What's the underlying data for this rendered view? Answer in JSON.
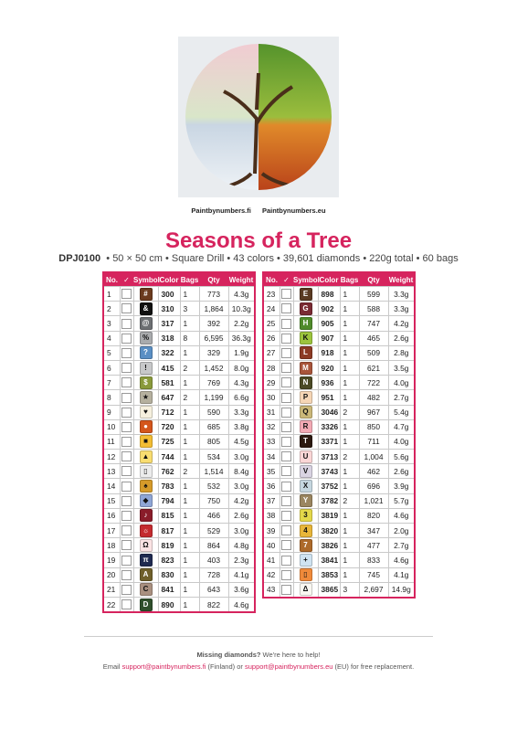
{
  "header": {
    "brands": [
      "Paintbynumbers.fi",
      "Paintbynumbers.eu"
    ],
    "title": "Seasons of a Tree",
    "code": "DPJ0100",
    "specs": "•  50 × 50 cm  •  Square Drill  •  43 colors  •  39,601 diamonds  •  220g total  •  60 bags"
  },
  "columns": [
    "No.",
    "✓",
    "Symbol",
    "Color",
    "Bags",
    "Qty",
    "Weight"
  ],
  "tables": [
    {
      "rows": [
        {
          "no": "1",
          "symbol": "#",
          "color": "300",
          "bags": "1",
          "qty": "773",
          "weight": "4.3g",
          "swatch": "#6b3a1e"
        },
        {
          "no": "2",
          "symbol": "&",
          "color": "310",
          "bags": "3",
          "qty": "1,864",
          "weight": "10.3g",
          "swatch": "#111111"
        },
        {
          "no": "3",
          "symbol": "@",
          "color": "317",
          "bags": "1",
          "qty": "392",
          "weight": "2.2g",
          "swatch": "#6c6f72"
        },
        {
          "no": "4",
          "symbol": "%",
          "color": "318",
          "bags": "8",
          "qty": "6,595",
          "weight": "36.3g",
          "swatch": "#a9abad"
        },
        {
          "no": "5",
          "symbol": "?",
          "color": "322",
          "bags": "1",
          "qty": "329",
          "weight": "1.9g",
          "swatch": "#5a8fc4"
        },
        {
          "no": "6",
          "symbol": "!",
          "color": "415",
          "bags": "2",
          "qty": "1,452",
          "weight": "8.0g",
          "swatch": "#c7c8c9"
        },
        {
          "no": "7",
          "symbol": "$",
          "color": "581",
          "bags": "1",
          "qty": "769",
          "weight": "4.3g",
          "swatch": "#8a9a3b"
        },
        {
          "no": "8",
          "symbol": "★",
          "color": "647",
          "bags": "2",
          "qty": "1,199",
          "weight": "6.6g",
          "swatch": "#b5b09e"
        },
        {
          "no": "9",
          "symbol": "♥",
          "color": "712",
          "bags": "1",
          "qty": "590",
          "weight": "3.3g",
          "swatch": "#f6f0de"
        },
        {
          "no": "10",
          "symbol": "●",
          "color": "720",
          "bags": "1",
          "qty": "685",
          "weight": "3.8g",
          "swatch": "#d4561c"
        },
        {
          "no": "11",
          "symbol": "■",
          "color": "725",
          "bags": "1",
          "qty": "805",
          "weight": "4.5g",
          "swatch": "#f3bd33"
        },
        {
          "no": "12",
          "symbol": "▲",
          "color": "744",
          "bags": "1",
          "qty": "534",
          "weight": "3.0g",
          "swatch": "#f9dd70"
        },
        {
          "no": "13",
          "symbol": "▯",
          "color": "762",
          "bags": "2",
          "qty": "1,514",
          "weight": "8.4g",
          "swatch": "#ececec"
        },
        {
          "no": "14",
          "symbol": "♠",
          "color": "783",
          "bags": "1",
          "qty": "532",
          "weight": "3.0g",
          "swatch": "#d59a2a"
        },
        {
          "no": "15",
          "symbol": "◆",
          "color": "794",
          "bags": "1",
          "qty": "750",
          "weight": "4.2g",
          "swatch": "#8fa6d6"
        },
        {
          "no": "16",
          "symbol": "♪",
          "color": "815",
          "bags": "1",
          "qty": "466",
          "weight": "2.6g",
          "swatch": "#8a1c2a"
        },
        {
          "no": "17",
          "symbol": "☼",
          "color": "817",
          "bags": "1",
          "qty": "529",
          "weight": "3.0g",
          "swatch": "#c42b2f"
        },
        {
          "no": "18",
          "symbol": "Ω",
          "color": "819",
          "bags": "1",
          "qty": "864",
          "weight": "4.8g",
          "swatch": "#fbe3e4"
        },
        {
          "no": "19",
          "symbol": "π",
          "color": "823",
          "bags": "1",
          "qty": "403",
          "weight": "2.3g",
          "swatch": "#1f2a50"
        },
        {
          "no": "20",
          "symbol": "A",
          "color": "830",
          "bags": "1",
          "qty": "728",
          "weight": "4.1g",
          "swatch": "#6f5f2a"
        },
        {
          "no": "21",
          "symbol": "C",
          "color": "841",
          "bags": "1",
          "qty": "643",
          "weight": "3.6g",
          "swatch": "#a99080"
        },
        {
          "no": "22",
          "symbol": "D",
          "color": "890",
          "bags": "1",
          "qty": "822",
          "weight": "4.6g",
          "swatch": "#2f4f2c"
        }
      ]
    },
    {
      "rows": [
        {
          "no": "23",
          "symbol": "E",
          "color": "898",
          "bags": "1",
          "qty": "599",
          "weight": "3.3g",
          "swatch": "#5a3a22"
        },
        {
          "no": "24",
          "symbol": "G",
          "color": "902",
          "bags": "1",
          "qty": "588",
          "weight": "3.3g",
          "swatch": "#7a2a33"
        },
        {
          "no": "25",
          "symbol": "H",
          "color": "905",
          "bags": "1",
          "qty": "747",
          "weight": "4.2g",
          "swatch": "#4f8a2a"
        },
        {
          "no": "26",
          "symbol": "K",
          "color": "907",
          "bags": "1",
          "qty": "465",
          "weight": "2.6g",
          "swatch": "#9cc43d"
        },
        {
          "no": "27",
          "symbol": "L",
          "color": "918",
          "bags": "1",
          "qty": "509",
          "weight": "2.8g",
          "swatch": "#8c3a24"
        },
        {
          "no": "28",
          "symbol": "M",
          "color": "920",
          "bags": "1",
          "qty": "621",
          "weight": "3.5g",
          "swatch": "#a8543a"
        },
        {
          "no": "29",
          "symbol": "N",
          "color": "936",
          "bags": "1",
          "qty": "722",
          "weight": "4.0g",
          "swatch": "#4b4a25"
        },
        {
          "no": "30",
          "symbol": "P",
          "color": "951",
          "bags": "1",
          "qty": "482",
          "weight": "2.7g",
          "swatch": "#f6d6b6"
        },
        {
          "no": "31",
          "symbol": "Q",
          "color": "3046",
          "bags": "2",
          "qty": "967",
          "weight": "5.4g",
          "swatch": "#cbb879"
        },
        {
          "no": "32",
          "symbol": "R",
          "color": "3326",
          "bags": "1",
          "qty": "850",
          "weight": "4.7g",
          "swatch": "#f3aab4"
        },
        {
          "no": "33",
          "symbol": "T",
          "color": "3371",
          "bags": "1",
          "qty": "711",
          "weight": "4.0g",
          "swatch": "#2c1a10"
        },
        {
          "no": "34",
          "symbol": "U",
          "color": "3713",
          "bags": "2",
          "qty": "1,004",
          "weight": "5.6g",
          "swatch": "#fbd6d6"
        },
        {
          "no": "35",
          "symbol": "V",
          "color": "3743",
          "bags": "1",
          "qty": "462",
          "weight": "2.6g",
          "swatch": "#d9d3e2"
        },
        {
          "no": "36",
          "symbol": "X",
          "color": "3752",
          "bags": "1",
          "qty": "696",
          "weight": "3.9g",
          "swatch": "#c5d6df"
        },
        {
          "no": "37",
          "symbol": "Y",
          "color": "3782",
          "bags": "2",
          "qty": "1,021",
          "weight": "5.7g",
          "swatch": "#9a8560"
        },
        {
          "no": "38",
          "symbol": "3",
          "color": "3819",
          "bags": "1",
          "qty": "820",
          "weight": "4.6g",
          "swatch": "#e4d84a"
        },
        {
          "no": "39",
          "symbol": "4",
          "color": "3820",
          "bags": "1",
          "qty": "347",
          "weight": "2.0g",
          "swatch": "#e8b63a"
        },
        {
          "no": "40",
          "symbol": "7",
          "color": "3826",
          "bags": "1",
          "qty": "477",
          "weight": "2.7g",
          "swatch": "#ad6a2a"
        },
        {
          "no": "41",
          "symbol": "+",
          "color": "3841",
          "bags": "1",
          "qty": "833",
          "weight": "4.6g",
          "swatch": "#cfe3f1"
        },
        {
          "no": "42",
          "symbol": "▯",
          "color": "3853",
          "bags": "1",
          "qty": "745",
          "weight": "4.1g",
          "swatch": "#f08a3a"
        },
        {
          "no": "43",
          "symbol": "Δ",
          "color": "3865",
          "bags": "3",
          "qty": "2,697",
          "weight": "14.9g",
          "swatch": "#f9f7f1"
        }
      ]
    }
  ],
  "footer": {
    "question": "Missing diamonds?",
    "help": "We're here to help!",
    "email_label": "Email",
    "email_fi": "support@paintbynumbers.fi",
    "fi_note": "(Finland) or",
    "email_eu": "support@paintbynumbers.eu",
    "eu_note": "(EU) for free replacement."
  }
}
